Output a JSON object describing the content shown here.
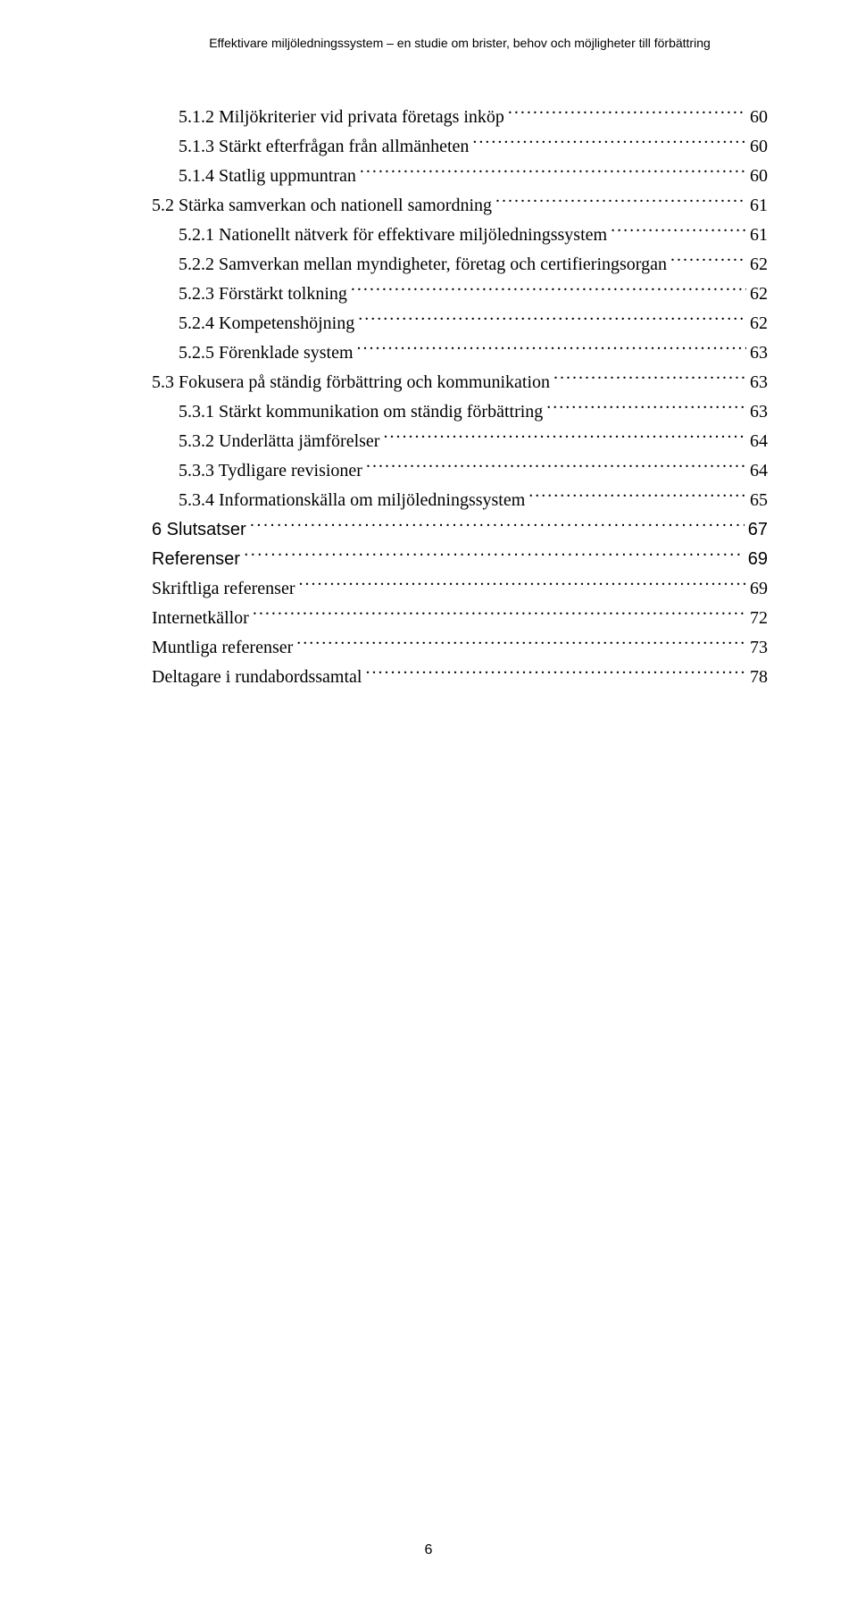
{
  "header": "Effektivare miljöledningssystem – en studie om brister, behov och möjligheter till förbättring",
  "entries": [
    {
      "label": "5.1.2 Miljökriterier vid privata företags inköp",
      "page": "60",
      "indent": 2,
      "sans": false
    },
    {
      "label": "5.1.3 Stärkt efterfrågan från allmänheten",
      "page": "60",
      "indent": 2,
      "sans": false
    },
    {
      "label": "5.1.4 Statlig uppmuntran",
      "page": "60",
      "indent": 2,
      "sans": false
    },
    {
      "label": "5.2 Stärka samverkan och nationell samordning",
      "page": "61",
      "indent": 1,
      "sans": false
    },
    {
      "label": "5.2.1 Nationellt nätverk för effektivare miljöledningssystem",
      "page": "61",
      "indent": 2,
      "sans": false
    },
    {
      "label": "5.2.2 Samverkan mellan myndigheter, företag och certifieringsorgan",
      "page": "62",
      "indent": 2,
      "sans": false
    },
    {
      "label": "5.2.3 Förstärkt tolkning",
      "page": "62",
      "indent": 2,
      "sans": false
    },
    {
      "label": "5.2.4 Kompetenshöjning",
      "page": "62",
      "indent": 2,
      "sans": false
    },
    {
      "label": "5.2.5 Förenklade system",
      "page": "63",
      "indent": 2,
      "sans": false
    },
    {
      "label": "5.3 Fokusera på ständig förbättring och kommunikation",
      "page": "63",
      "indent": 1,
      "sans": false
    },
    {
      "label": "5.3.1 Stärkt kommunikation om ständig förbättring",
      "page": "63",
      "indent": 2,
      "sans": false
    },
    {
      "label": "5.3.2 Underlätta jämförelser",
      "page": "64",
      "indent": 2,
      "sans": false
    },
    {
      "label": "5.3.3 Tydligare revisioner",
      "page": "64",
      "indent": 2,
      "sans": false
    },
    {
      "label": "5.3.4 Informationskälla om miljöledningssystem",
      "page": "65",
      "indent": 2,
      "sans": false
    },
    {
      "label": "6 Slutsatser",
      "page": "67",
      "indent": 1,
      "sans": true
    },
    {
      "label": "Referenser",
      "page": "69",
      "indent": 1,
      "sans": true
    },
    {
      "label": "Skriftliga referenser",
      "page": "69",
      "indent": 1,
      "sans": false
    },
    {
      "label": "Internetkällor",
      "page": "72",
      "indent": 1,
      "sans": false
    },
    {
      "label": "Muntliga referenser",
      "page": "73",
      "indent": 1,
      "sans": false
    },
    {
      "label": "Deltagare i rundabordssamtal",
      "page": "78",
      "indent": 1,
      "sans": false
    }
  ],
  "pageNumber": "6"
}
